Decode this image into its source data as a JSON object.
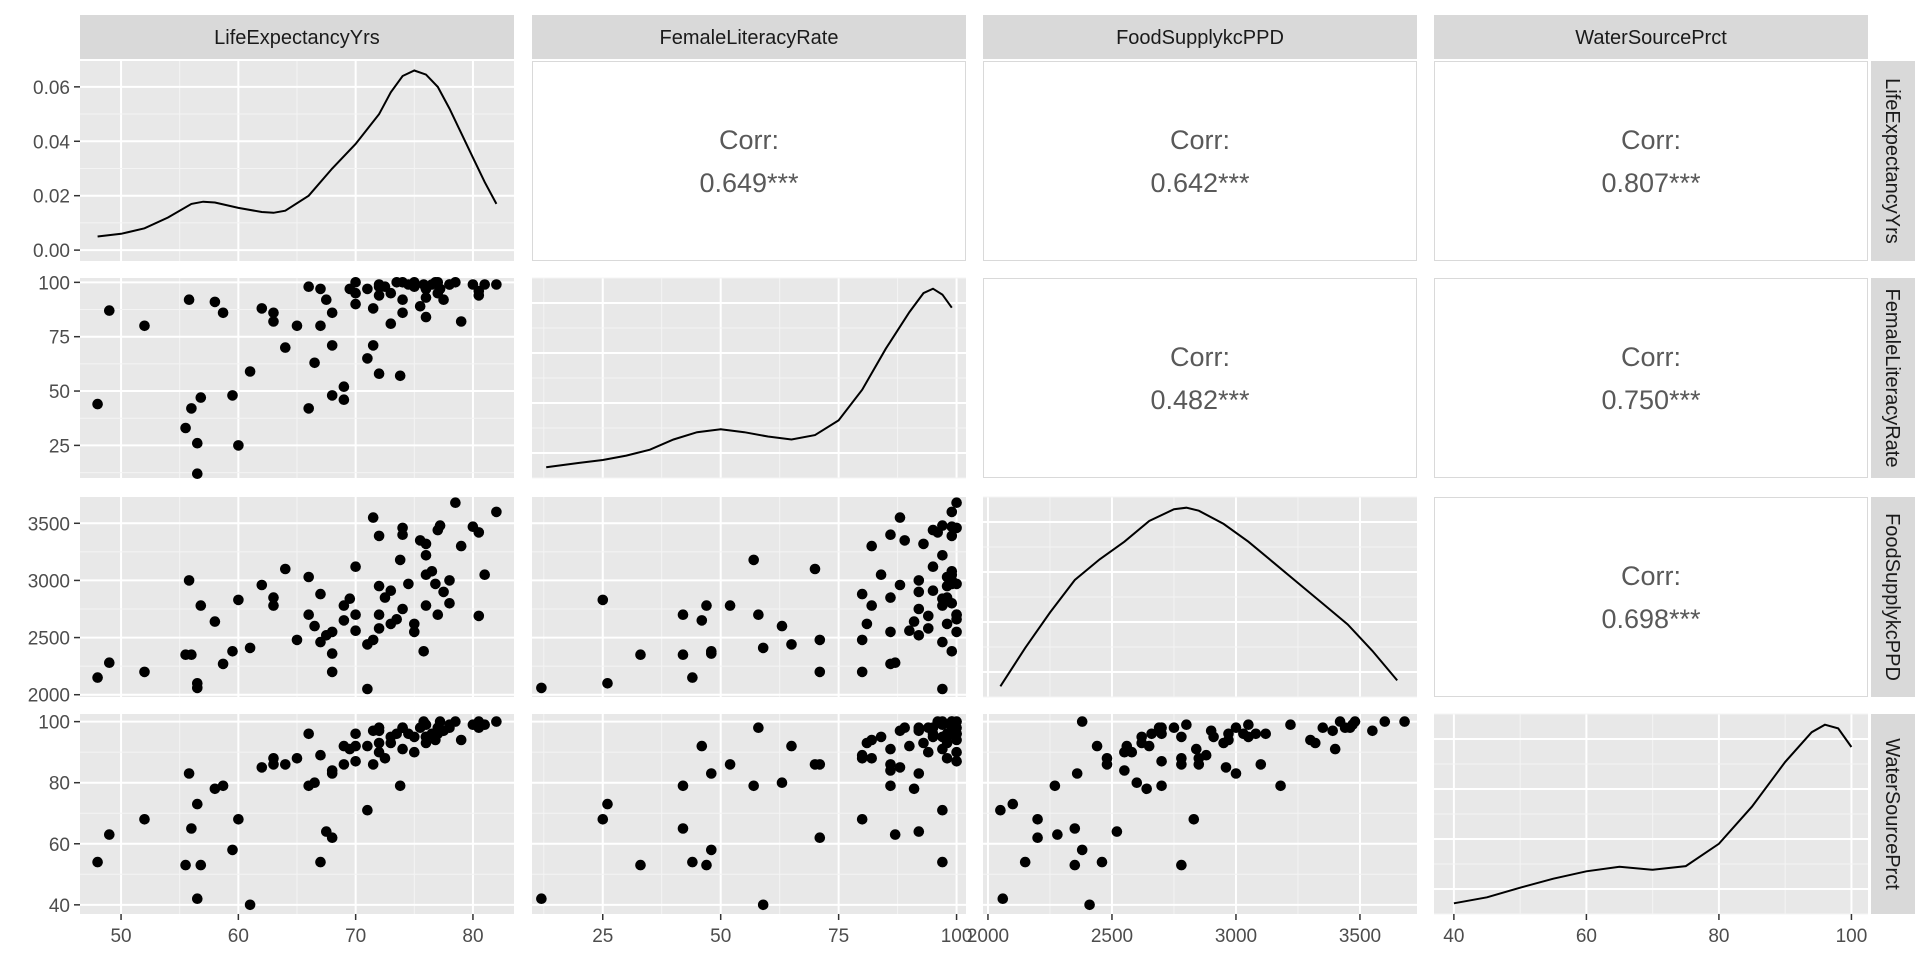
{
  "chart_data": {
    "type": "scatter_matrix",
    "variables": [
      {
        "name": "LifeExpectancyYrs",
        "lim": [
          46.5,
          83.5
        ],
        "ticks": [
          50,
          60,
          70,
          80
        ],
        "tick_labels": [
          "50",
          "60",
          "70",
          "80"
        ]
      },
      {
        "name": "FemaleLiteracyRate",
        "lim": [
          10,
          102
        ],
        "ticks": [
          25,
          50,
          75,
          100
        ],
        "tick_labels": [
          "25",
          "50",
          "75",
          "100"
        ]
      },
      {
        "name": "FoodSupplykcPPD",
        "lim": [
          1980,
          3730
        ],
        "ticks": [
          2000,
          2500,
          3000,
          3500
        ],
        "tick_labels": [
          "2000",
          "2500",
          "3000",
          "3500"
        ]
      },
      {
        "name": "WaterSourcePrct",
        "lim": [
          37,
          102.5
        ],
        "ticks": [
          40,
          60,
          80,
          100
        ],
        "tick_labels": [
          "40",
          "60",
          "80",
          "100"
        ]
      }
    ],
    "density_y_axis": {
      "lim": [
        -0.004,
        0.0695
      ],
      "ticks": [
        0,
        0.02,
        0.04,
        0.06
      ],
      "tick_labels": [
        "0.00",
        "0.02",
        "0.04",
        "0.06"
      ]
    },
    "densities": [
      [
        [
          48,
          0.005
        ],
        [
          50,
          0.006
        ],
        [
          52,
          0.008
        ],
        [
          54,
          0.012
        ],
        [
          56,
          0.017
        ],
        [
          57,
          0.0178
        ],
        [
          58,
          0.0175
        ],
        [
          60,
          0.0155
        ],
        [
          62,
          0.014
        ],
        [
          63,
          0.0137
        ],
        [
          64,
          0.0145
        ],
        [
          66,
          0.02
        ],
        [
          68,
          0.03
        ],
        [
          70,
          0.039
        ],
        [
          72,
          0.05
        ],
        [
          73,
          0.058
        ],
        [
          74,
          0.064
        ],
        [
          75,
          0.066
        ],
        [
          76,
          0.0645
        ],
        [
          77,
          0.06
        ],
        [
          78,
          0.052
        ],
        [
          79,
          0.043
        ],
        [
          80,
          0.034
        ],
        [
          81,
          0.025
        ],
        [
          82,
          0.017
        ]
      ],
      [
        [
          13,
          0.009
        ],
        [
          20,
          0.012
        ],
        [
          25,
          0.014
        ],
        [
          30,
          0.017
        ],
        [
          35,
          0.021
        ],
        [
          40,
          0.028
        ],
        [
          45,
          0.033
        ],
        [
          50,
          0.035
        ],
        [
          55,
          0.033
        ],
        [
          60,
          0.03
        ],
        [
          65,
          0.028
        ],
        [
          70,
          0.031
        ],
        [
          75,
          0.041
        ],
        [
          80,
          0.062
        ],
        [
          85,
          0.09
        ],
        [
          90,
          0.115
        ],
        [
          93,
          0.128
        ],
        [
          95,
          0.131
        ],
        [
          97,
          0.127
        ],
        [
          99,
          0.118
        ]
      ],
      [
        [
          2050,
          0.25
        ],
        [
          2150,
          0.38
        ],
        [
          2250,
          0.5
        ],
        [
          2350,
          0.61
        ],
        [
          2450,
          0.68
        ],
        [
          2550,
          0.74
        ],
        [
          2650,
          0.81
        ],
        [
          2750,
          0.85
        ],
        [
          2800,
          0.855
        ],
        [
          2850,
          0.845
        ],
        [
          2950,
          0.8
        ],
        [
          3050,
          0.74
        ],
        [
          3150,
          0.67
        ],
        [
          3250,
          0.6
        ],
        [
          3350,
          0.53
        ],
        [
          3450,
          0.46
        ],
        [
          3550,
          0.37
        ],
        [
          3650,
          0.27
        ]
      ],
      [
        [
          40,
          0.0055
        ],
        [
          45,
          0.0063
        ],
        [
          50,
          0.0076
        ],
        [
          55,
          0.0088
        ],
        [
          60,
          0.0098
        ],
        [
          65,
          0.0104
        ],
        [
          70,
          0.01
        ],
        [
          75,
          0.0105
        ],
        [
          80,
          0.0135
        ],
        [
          85,
          0.0185
        ],
        [
          90,
          0.0245
        ],
        [
          94,
          0.0285
        ],
        [
          96,
          0.0295
        ],
        [
          98,
          0.029
        ],
        [
          100,
          0.0265
        ]
      ]
    ],
    "density_value_ranges": [
      [
        0.005,
        0.066
      ],
      [
        0.009,
        0.131
      ],
      [
        0.25,
        0.855
      ],
      [
        0.0055,
        0.0295
      ]
    ],
    "correlations": [
      {
        "row": 0,
        "col": 1,
        "label": "Corr:",
        "value": "0.649***"
      },
      {
        "row": 0,
        "col": 2,
        "label": "Corr:",
        "value": "0.642***"
      },
      {
        "row": 0,
        "col": 3,
        "label": "Corr:",
        "value": "0.807***"
      },
      {
        "row": 1,
        "col": 2,
        "label": "Corr:",
        "value": "0.482***"
      },
      {
        "row": 1,
        "col": 3,
        "label": "Corr:",
        "value": "0.750***"
      },
      {
        "row": 2,
        "col": 3,
        "label": "Corr:",
        "value": "0.698***"
      }
    ],
    "observations": [
      [
        48,
        44,
        2150,
        54
      ],
      [
        49,
        87,
        2280,
        63
      ],
      [
        52,
        80,
        2200,
        68
      ],
      [
        55.5,
        33,
        2350,
        53
      ],
      [
        55.8,
        92,
        3000,
        83
      ],
      [
        56,
        42,
        2350,
        65
      ],
      [
        56.5,
        26,
        2100,
        73
      ],
      [
        56.5,
        12,
        2060,
        42
      ],
      [
        56.8,
        47,
        2780,
        53
      ],
      [
        58.7,
        86,
        2270,
        79
      ],
      [
        59.5,
        48,
        2380,
        58
      ],
      [
        60,
        25,
        2830,
        68
      ],
      [
        61,
        59,
        2410,
        40
      ],
      [
        63,
        82,
        2780,
        88
      ],
      [
        63,
        86,
        2850,
        86
      ],
      [
        66,
        42,
        2700,
        79
      ],
      [
        66.5,
        63,
        2600,
        80
      ],
      [
        67,
        97,
        2460,
        54
      ],
      [
        67.5,
        92,
        2520,
        64
      ],
      [
        68,
        71,
        2200,
        62
      ],
      [
        68,
        48,
        2360,
        83
      ],
      [
        69,
        52,
        2780,
        86
      ],
      [
        69.5,
        97,
        2840,
        91
      ],
      [
        69,
        46,
        2650,
        92
      ],
      [
        70,
        100,
        2700,
        87
      ],
      [
        71,
        97,
        2050,
        71
      ],
      [
        71,
        65,
        2440,
        92
      ],
      [
        71.5,
        71,
        2480,
        86
      ],
      [
        71.5,
        88,
        3550,
        97
      ],
      [
        72,
        58,
        2700,
        98
      ],
      [
        72,
        94,
        2580,
        90
      ],
      [
        72.5,
        98,
        2850,
        88
      ],
      [
        73,
        95,
        2910,
        95
      ],
      [
        73,
        81,
        2620,
        93
      ],
      [
        73.5,
        100,
        2660,
        96
      ],
      [
        73.8,
        57,
        3180,
        79
      ],
      [
        74,
        92,
        2750,
        98
      ],
      [
        74,
        86,
        3400,
        91
      ],
      [
        74.5,
        99,
        2970,
        96
      ],
      [
        75,
        100,
        2550,
        90
      ],
      [
        75.5,
        89,
        3350,
        98
      ],
      [
        75.8,
        99,
        2380,
        100
      ],
      [
        76,
        93,
        3320,
        93
      ],
      [
        76,
        84,
        3050,
        95
      ],
      [
        76,
        97,
        3220,
        99
      ],
      [
        76.5,
        99,
        3080,
        96
      ],
      [
        76.8,
        100,
        2970,
        94
      ],
      [
        77,
        95,
        3440,
        98
      ],
      [
        77,
        100,
        2700,
        96
      ],
      [
        77.2,
        97,
        3480,
        100
      ],
      [
        77.5,
        92,
        2900,
        97
      ],
      [
        78,
        99,
        2800,
        99
      ],
      [
        78.5,
        100,
        3680,
        100
      ],
      [
        79,
        82,
        3300,
        94
      ],
      [
        80,
        99,
        3470,
        99
      ],
      [
        80.5,
        96,
        3420,
        100
      ],
      [
        80.5,
        94,
        2690,
        98
      ],
      [
        81,
        99,
        3050,
        99
      ],
      [
        82,
        99,
        3600,
        100
      ],
      [
        64,
        70,
        3100,
        86
      ],
      [
        66,
        98,
        3030,
        96
      ],
      [
        70,
        95,
        3120,
        96
      ],
      [
        72,
        99,
        3390,
        97
      ],
      [
        74,
        100,
        3460,
        98
      ],
      [
        76,
        97,
        2780,
        95
      ],
      [
        78,
        99,
        3000,
        98
      ],
      [
        68,
        86,
        2550,
        84
      ],
      [
        70,
        90,
        2560,
        92
      ],
      [
        72,
        98,
        2950,
        93
      ],
      [
        75,
        98,
        2620,
        95
      ],
      [
        58,
        91,
        2640,
        78
      ],
      [
        62,
        88,
        2960,
        85
      ],
      [
        65,
        80,
        2480,
        88
      ],
      [
        67,
        80,
        2880,
        89
      ]
    ]
  }
}
